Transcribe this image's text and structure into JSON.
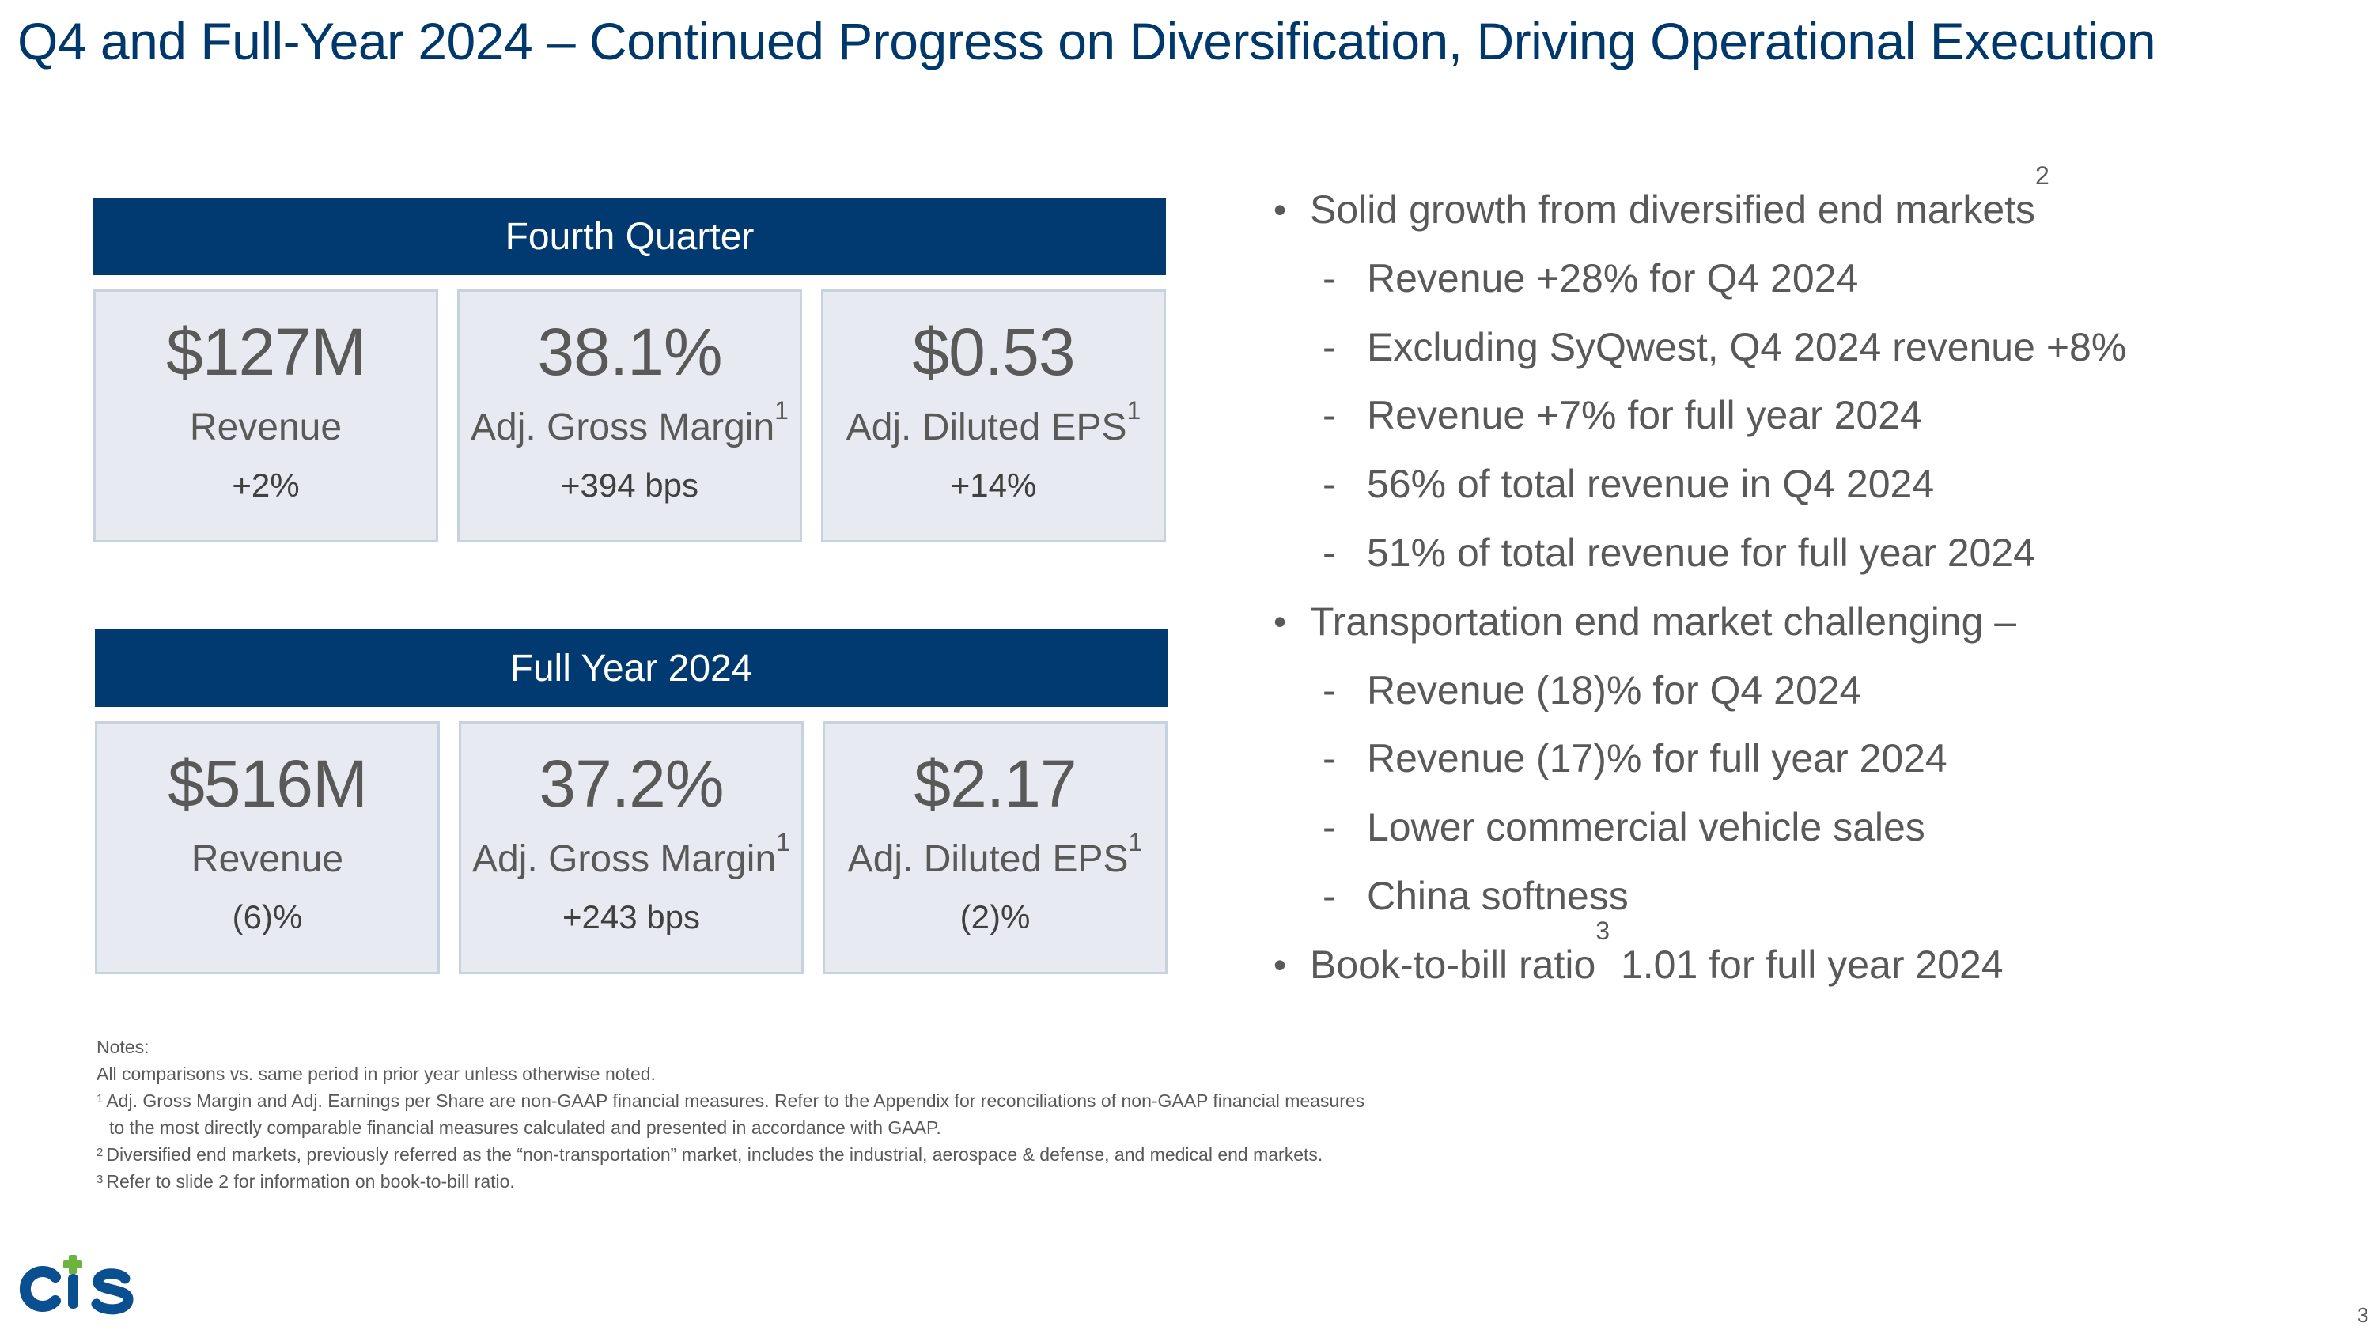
{
  "title": "Q4 and Full-Year 2024 – Continued Progress on Diversification, Driving Operational Execution",
  "fourth_quarter": {
    "header": "Fourth Quarter",
    "tiles": [
      {
        "value": "$127M",
        "label": "Revenue",
        "sup": "",
        "change": "+2%"
      },
      {
        "value": "38.1%",
        "label": "Adj. Gross Margin",
        "sup": "1",
        "change": "+394 bps"
      },
      {
        "value": "$0.53",
        "label": "Adj. Diluted EPS",
        "sup": "1",
        "change": "+14%"
      }
    ]
  },
  "full_year": {
    "header": "Full Year 2024",
    "tiles": [
      {
        "value": "$516M",
        "label": "Revenue",
        "sup": "",
        "change": "(6)%"
      },
      {
        "value": "37.2%",
        "label": "Adj. Gross Margin",
        "sup": "1",
        "change": "+243 bps"
      },
      {
        "value": "$2.17",
        "label": "Adj. Diluted EPS",
        "sup": "1",
        "change": "(2)%"
      }
    ]
  },
  "bullets": [
    {
      "text": "Solid growth from diversified end markets",
      "sup": "2",
      "rest": "",
      "subs": [
        "Revenue +28% for Q4 2024",
        "Excluding SyQwest, Q4 2024 revenue +8%",
        "Revenue +7% for full year 2024",
        "56% of total revenue in Q4 2024",
        "51% of total revenue for full year 2024"
      ]
    },
    {
      "text": "Transportation end market challenging –",
      "sup": "",
      "rest": "",
      "subs": [
        "Revenue (18)% for Q4 2024",
        "Revenue (17)% for full year 2024",
        "Lower commercial vehicle sales",
        "China softness"
      ]
    },
    {
      "text": "Book-to-bill ratio",
      "sup": "3",
      "rest": " 1.01 for full year 2024",
      "subs": []
    }
  ],
  "notes": {
    "heading": "Notes:",
    "line1": "All comparisons vs. same period in prior year unless otherwise noted.",
    "n1_sup": "1",
    "n1": "Adj. Gross Margin and Adj. Earnings per Share are non-GAAP financial measures. Refer to the Appendix for reconciliations of non-GAAP financial measures",
    "n1_cont": "to the most directly comparable financial measures calculated and presented in accordance with GAAP.",
    "n2_sup": "2",
    "n2": "Diversified end markets, previously referred as the “non-transportation” market, includes the industrial, aerospace & defense, and medical end markets.",
    "n3_sup": "3",
    "n3": "Refer to slide 2 for information on book-to-bill ratio."
  },
  "logo": {
    "text": "CTS",
    "color_blue": "#0a4f8f",
    "color_green": "#6db33f"
  },
  "page_number": "3"
}
